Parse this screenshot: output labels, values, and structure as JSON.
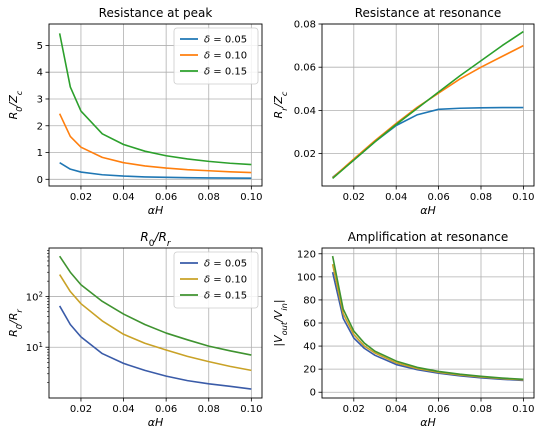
{
  "chart_data": [
    {
      "type": "line",
      "title": "Resistance at peak",
      "xlabel": "αH",
      "ylabel": "R₀/Z꜀",
      "ylabel_main": "R",
      "ylabel_sub": "0",
      "ylabel_rest": "/Z",
      "ylabel_sub2": "c",
      "xlim": [
        0.005,
        0.105
      ],
      "ylim": [
        -0.25,
        5.8
      ],
      "yscale": "linear",
      "grid": true,
      "legend": "top-right",
      "xticks": [
        0.02,
        0.04,
        0.06,
        0.08,
        0.1
      ],
      "xtick_labels": [
        "0.02",
        "0.04",
        "0.06",
        "0.08",
        "0.10"
      ],
      "yticks": [
        0,
        1,
        2,
        3,
        4,
        5
      ],
      "ytick_labels": [
        "0",
        "1",
        "2",
        "3",
        "4",
        "5"
      ],
      "x": [
        0.01,
        0.015,
        0.02,
        0.03,
        0.04,
        0.05,
        0.06,
        0.07,
        0.08,
        0.09,
        0.1
      ],
      "series": [
        {
          "name": "δ = 0.05",
          "color": "#1f77b4",
          "values": [
            0.62,
            0.38,
            0.27,
            0.17,
            0.12,
            0.09,
            0.075,
            0.06,
            0.05,
            0.045,
            0.04
          ]
        },
        {
          "name": "δ = 0.10",
          "color": "#ff7f0e",
          "values": [
            2.45,
            1.6,
            1.2,
            0.82,
            0.62,
            0.5,
            0.42,
            0.36,
            0.32,
            0.28,
            0.25
          ]
        },
        {
          "name": "δ = 0.15",
          "color": "#2ca02c",
          "values": [
            5.45,
            3.45,
            2.55,
            1.7,
            1.3,
            1.05,
            0.88,
            0.76,
            0.67,
            0.6,
            0.55
          ]
        }
      ]
    },
    {
      "type": "line",
      "title": "Resistance at resonance",
      "xlabel": "αH",
      "ylabel": "Rᵣ/Z꜀",
      "ylabel_main": "R",
      "ylabel_sub": "r",
      "ylabel_rest": "/Z",
      "ylabel_sub2": "c",
      "xlim": [
        0.005,
        0.105
      ],
      "ylim": [
        0.005,
        0.08
      ],
      "yscale": "linear",
      "grid": true,
      "xticks": [
        0.02,
        0.04,
        0.06,
        0.08,
        0.1
      ],
      "xtick_labels": [
        "0.02",
        "0.04",
        "0.06",
        "0.08",
        "0.10"
      ],
      "yticks": [
        0.02,
        0.04,
        0.06,
        0.08
      ],
      "ytick_labels": [
        "0.02",
        "0.04",
        "0.06",
        "0.08"
      ],
      "x": [
        0.01,
        0.02,
        0.03,
        0.04,
        0.05,
        0.06,
        0.07,
        0.08,
        0.09,
        0.1
      ],
      "series": [
        {
          "color": "#1f77b4",
          "values": [
            0.009,
            0.017,
            0.0255,
            0.033,
            0.038,
            0.0405,
            0.041,
            0.0412,
            0.0413,
            0.0413
          ]
        },
        {
          "color": "#ff7f0e",
          "values": [
            0.0088,
            0.0175,
            0.026,
            0.034,
            0.0415,
            0.048,
            0.0545,
            0.06,
            0.065,
            0.07
          ]
        },
        {
          "color": "#2ca02c",
          "values": [
            0.0085,
            0.017,
            0.0255,
            0.0335,
            0.041,
            0.0485,
            0.056,
            0.063,
            0.07,
            0.0765
          ]
        }
      ]
    },
    {
      "type": "line",
      "title": "R₀/Rᵣ",
      "title_main": "R",
      "title_sub": "0",
      "title_rest": "/R",
      "title_sub2": "r",
      "xlabel": "αH",
      "ylabel": "R₀/Rᵣ",
      "ylabel_main": "R",
      "ylabel_sub": "0",
      "ylabel_rest": "/R",
      "ylabel_sub2": "r",
      "xlim": [
        0.005,
        0.105
      ],
      "ylim": [
        1.0,
        900
      ],
      "yscale": "log",
      "grid": true,
      "legend": "top-right",
      "xticks": [
        0.02,
        0.04,
        0.06,
        0.08,
        0.1
      ],
      "xtick_labels": [
        "0.02",
        "0.04",
        "0.06",
        "0.08",
        "0.10"
      ],
      "yticks": [
        10,
        100
      ],
      "ytick_labels": [
        "10¹",
        "10²"
      ],
      "x": [
        0.01,
        0.015,
        0.02,
        0.03,
        0.04,
        0.05,
        0.06,
        0.07,
        0.08,
        0.09,
        0.1
      ],
      "series": [
        {
          "name": "δ = 0.05",
          "color": "#3a5ba8",
          "values": [
            65,
            28,
            16,
            7.5,
            4.8,
            3.5,
            2.7,
            2.2,
            1.9,
            1.7,
            1.5
          ]
        },
        {
          "name": "δ = 0.10",
          "color": "#c9a227",
          "values": [
            270,
            125,
            72,
            33,
            18,
            12,
            8.8,
            6.6,
            5.2,
            4.2,
            3.5
          ]
        },
        {
          "name": "δ = 0.15",
          "color": "#3f9330",
          "values": [
            620,
            300,
            170,
            80,
            45,
            28,
            19,
            14,
            10.5,
            8.5,
            7
          ]
        }
      ]
    },
    {
      "type": "line",
      "title": "Amplification at resonance",
      "xlabel": "αH",
      "ylabel": "|V_out/V_in|",
      "ylabel_main": "|V",
      "ylabel_sub": "out",
      "ylabel_rest": "/V",
      "ylabel_sub2": "in",
      "ylabel_end": "|",
      "xlim": [
        0.005,
        0.105
      ],
      "ylim": [
        -5,
        125
      ],
      "yscale": "linear",
      "grid": true,
      "xticks": [
        0.02,
        0.04,
        0.06,
        0.08,
        0.1
      ],
      "xtick_labels": [
        "0.02",
        "0.04",
        "0.06",
        "0.08",
        "0.10"
      ],
      "yticks": [
        0,
        20,
        40,
        60,
        80,
        100,
        120
      ],
      "ytick_labels": [
        "0",
        "20",
        "40",
        "60",
        "80",
        "100",
        "120"
      ],
      "x": [
        0.01,
        0.015,
        0.02,
        0.025,
        0.03,
        0.04,
        0.05,
        0.06,
        0.07,
        0.08,
        0.09,
        0.1
      ],
      "series": [
        {
          "color": "#3a5ba8",
          "values": [
            104,
            64,
            47,
            38,
            32,
            24,
            19.5,
            16.5,
            14.2,
            12.5,
            11.2,
            10.2
          ]
        },
        {
          "color": "#c9a227",
          "values": [
            111,
            68,
            50,
            40,
            34,
            25.5,
            20.5,
            17.3,
            15,
            13.2,
            11.8,
            10.7
          ]
        },
        {
          "color": "#3f9330",
          "values": [
            118,
            72,
            53,
            42.5,
            35.5,
            27,
            21.5,
            18,
            15.6,
            13.8,
            12.3,
            11.2
          ]
        }
      ]
    }
  ]
}
